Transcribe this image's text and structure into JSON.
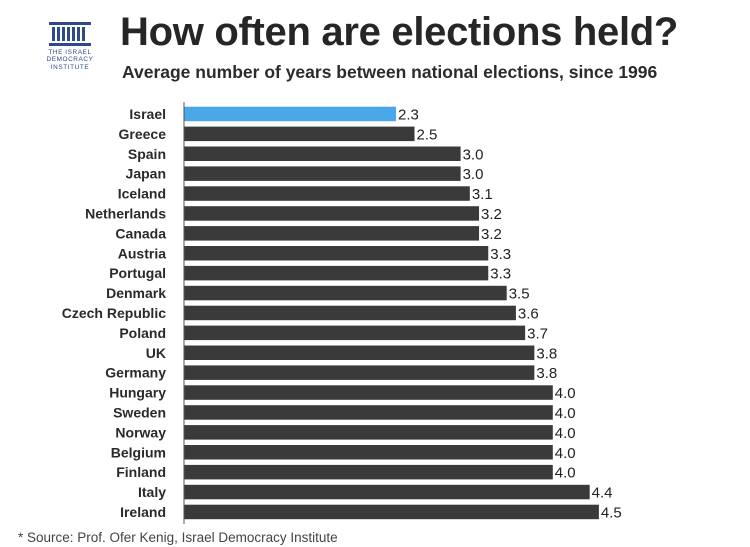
{
  "header": {
    "logo_lines": [
      "THE ISRAEL",
      "DEMOCRACY",
      "INSTITUTE"
    ],
    "title": "How often are elections held?",
    "subtitle": "Average number of years between national elections, since 1996"
  },
  "footnote": "* Source: Prof. Ofer Kenig, Israel Democracy Institute",
  "colors": {
    "highlight": "#4aa8e8",
    "bar": "#3a3a3a",
    "axis": "#555555"
  },
  "chart_data": {
    "type": "bar",
    "orientation": "horizontal",
    "title": "How often are elections held?",
    "subtitle": "Average number of years between national elections, since 1996",
    "categories": [
      "Israel",
      "Greece",
      "Spain",
      "Japan",
      "Iceland",
      "Netherlands",
      "Canada",
      "Austria",
      "Portugal",
      "Denmark",
      "Czech Republic",
      "Poland",
      "UK",
      "Germany",
      "Hungary",
      "Sweden",
      "Norway",
      "Belgium",
      "Finland",
      "Italy",
      "Ireland"
    ],
    "values": [
      2.3,
      2.5,
      3.0,
      3.0,
      3.1,
      3.2,
      3.2,
      3.3,
      3.3,
      3.5,
      3.6,
      3.7,
      3.8,
      3.8,
      4.0,
      4.0,
      4.0,
      4.0,
      4.0,
      4.4,
      4.5
    ],
    "value_labels": [
      "2.3",
      "2.5",
      "3.0",
      "3.0",
      "3.1",
      "3.2",
      "3.2",
      "3.3",
      "3.3",
      "3.5",
      "3.6",
      "3.7",
      "3.8",
      "3.8",
      "4.0",
      "4.0",
      "4.0",
      "4.0",
      "4.0",
      "4.4",
      "4.5"
    ],
    "highlight_category": "Israel",
    "xlim": [
      0,
      4.5
    ],
    "grid": false,
    "legend": "none"
  }
}
